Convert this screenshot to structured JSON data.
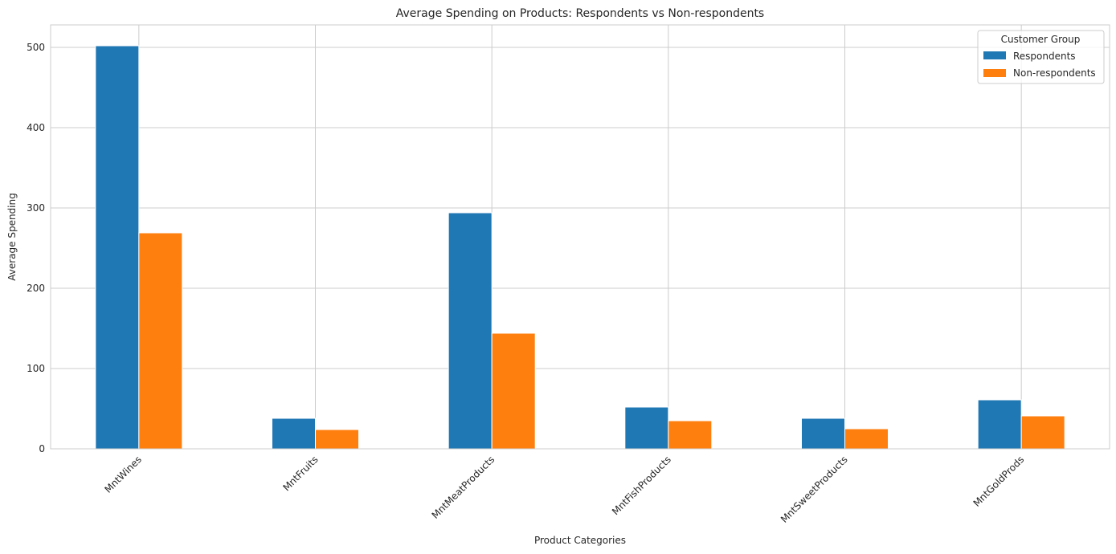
{
  "chart_data": {
    "type": "bar",
    "title": "Average Spending on Products: Respondents vs Non-respondents",
    "xlabel": "Product Categories",
    "ylabel": "Average Spending",
    "categories": [
      "MntWines",
      "MntFruits",
      "MntMeatProducts",
      "MntFishProducts",
      "MntSweetProducts",
      "MntGoldProds"
    ],
    "series": [
      {
        "name": "Respondents",
        "color": "#1f77b4",
        "values": [
          502,
          38,
          294,
          52,
          38,
          61
        ]
      },
      {
        "name": "Non-respondents",
        "color": "#ff7f0e",
        "values": [
          269,
          24,
          144,
          35,
          25,
          41
        ]
      }
    ],
    "ylim": [
      0,
      528
    ],
    "yticks": [
      0,
      100,
      200,
      300,
      400,
      500
    ],
    "grid": true,
    "legend": {
      "title": "Customer Group",
      "placement": "top-right"
    }
  }
}
